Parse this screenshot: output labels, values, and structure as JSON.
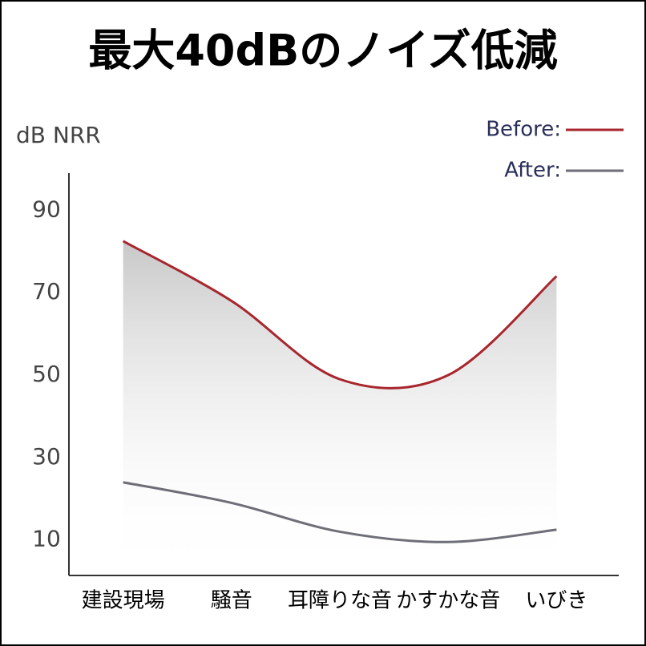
{
  "chart_data": {
    "type": "line",
    "title": "最大40dBのノイズ低減",
    "y_label": "dB NRR",
    "categories": [
      "建設現場",
      "騒音",
      "耳障りな音",
      "かすかな音",
      "いびき"
    ],
    "series": [
      {
        "name": "Before:",
        "color": "#a8262e",
        "values": [
          82.5,
          68,
          49,
          50,
          74
        ]
      },
      {
        "name": "After:",
        "color": "#6e6e78",
        "values": [
          24,
          19,
          12,
          9.5,
          12.5
        ]
      }
    ],
    "ylim": [
      1,
      99
    ],
    "yticks": [
      10,
      30,
      50,
      70,
      90
    ],
    "grid": false,
    "legend": "top-right"
  }
}
